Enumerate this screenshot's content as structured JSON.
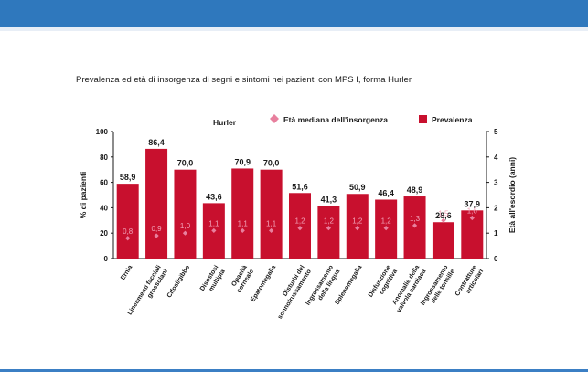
{
  "title": "Prevalenza ed età di insorgenza di segni e sintomi nei pazienti con MPS I, forma Hurler",
  "colors": {
    "bar": "#c8102e",
    "marker": "#e8809e",
    "age_label": "#f2a2b8",
    "header": "#2f78bd"
  },
  "chart_data": {
    "type": "bar",
    "group_label": "Hurler",
    "categories": [
      "Ernia",
      "Lineamenti facciali grossolani",
      "Cifosi/gibbo",
      "Disostosi multipla",
      "Opacità corneale",
      "Epatomegalia",
      "Disturbi del sonno/russamento",
      "Ingrossamento della lingua",
      "Splenomegalia",
      "Disfunzione cognitiva",
      "Anomalie della valvola cardiaca",
      "Ingrossamento delle tonsille",
      "Contratture articolari"
    ],
    "category_lines": [
      [
        "Ernia"
      ],
      [
        "Lineamenti facciali",
        "grossolani"
      ],
      [
        "Cifosi/gibbo"
      ],
      [
        "Disostosi",
        "multipla"
      ],
      [
        "Opacità",
        "corneale"
      ],
      [
        "Epatomegalia"
      ],
      [
        "Disturbi del",
        "sonno/russamento"
      ],
      [
        "Ingrossamento",
        "della lingua"
      ],
      [
        "Splenomegalia"
      ],
      [
        "Disfunzione",
        "cognitiva"
      ],
      [
        "Anomalie della",
        "valvola cardiaca"
      ],
      [
        "Ingrossamento",
        "delle tonsille"
      ],
      [
        "Contratture",
        "articolari"
      ]
    ],
    "series": [
      {
        "name": "Prevalenza",
        "type": "bar",
        "axis": "left",
        "values": [
          58.9,
          86.4,
          70.0,
          43.6,
          70.9,
          70.0,
          51.6,
          41.3,
          50.9,
          46.4,
          48.9,
          28.6,
          37.9
        ],
        "labels": [
          "58,9",
          "86,4",
          "70,0",
          "43,6",
          "70,9",
          "70,0",
          "51,6",
          "41,3",
          "50,9",
          "46,4",
          "48,9",
          "28,6",
          "37,9"
        ]
      },
      {
        "name": "Età mediana dell'insorgenza",
        "type": "scatter",
        "marker": "diamond",
        "axis": "right",
        "values": [
          0.8,
          0.9,
          1.0,
          1.1,
          1.1,
          1.1,
          1.2,
          1.2,
          1.2,
          1.2,
          1.3,
          1.5,
          1.6
        ],
        "labels": [
          "0,8",
          "0,9",
          "1,0",
          "1,1",
          "1,1",
          "1,1",
          "1,2",
          "1,2",
          "1,2",
          "1,2",
          "1,3",
          "1,5",
          "1,6"
        ]
      }
    ],
    "ylabel": "% di pazienti",
    "ylim": [
      0,
      100
    ],
    "yticks": [
      0,
      20,
      40,
      60,
      80,
      100
    ],
    "y2label": "Età all'esordio (anni)",
    "y2lim": [
      0,
      5
    ],
    "y2ticks": [
      0,
      1,
      2,
      3,
      4,
      5
    ],
    "legend": "top-right",
    "grid": false
  }
}
